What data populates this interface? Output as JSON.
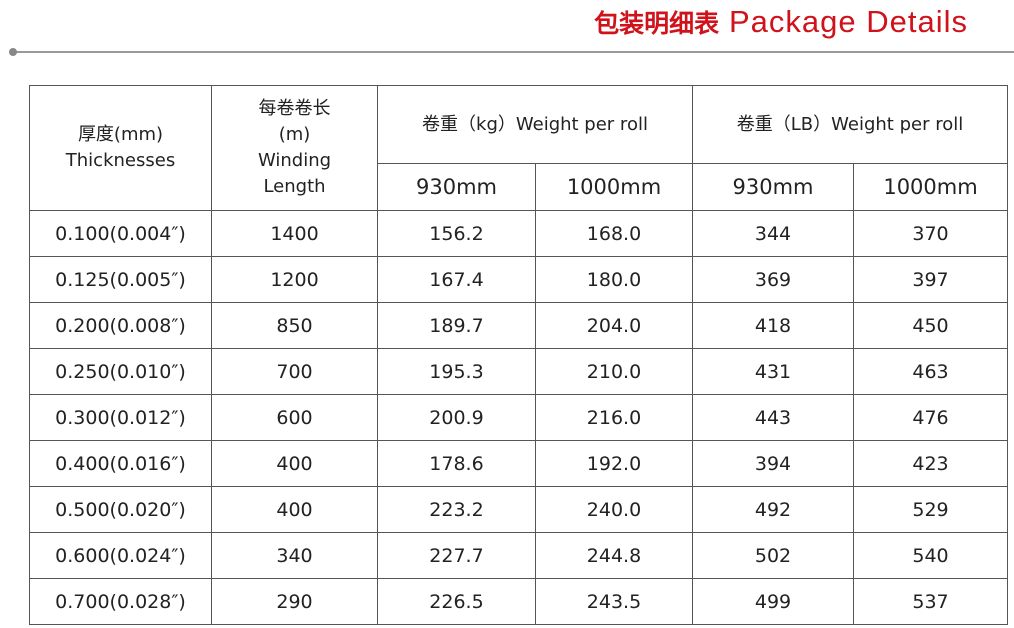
{
  "title": {
    "cn": "包装明细表",
    "en": "Package Details",
    "color": "#d0121b"
  },
  "table": {
    "headers": {
      "thickness_cn": "厚度(mm)",
      "thickness_en": "Thicknesses",
      "length_cn": "每卷卷长",
      "length_unit": "(m)",
      "length_en1": "Winding",
      "length_en2": "Length",
      "weight_kg": "卷重（kg）Weight per roll",
      "weight_lb": "卷重（LB）Weight per roll",
      "sub": [
        "930mm",
        "1000mm",
        "930mm",
        "1000mm"
      ]
    },
    "rows": [
      [
        "0.100(0.004″)",
        "1400",
        "156.2",
        "168.0",
        "344",
        "370"
      ],
      [
        "0.125(0.005″)",
        "1200",
        "167.4",
        "180.0",
        "369",
        "397"
      ],
      [
        "0.200(0.008″)",
        "850",
        "189.7",
        "204.0",
        "418",
        "450"
      ],
      [
        "0.250(0.010″)",
        "700",
        "195.3",
        "210.0",
        "431",
        "463"
      ],
      [
        "0.300(0.012″)",
        "600",
        "200.9",
        "216.0",
        "443",
        "476"
      ],
      [
        "0.400(0.016″)",
        "400",
        "178.6",
        "192.0",
        "394",
        "423"
      ],
      [
        "0.500(0.020″)",
        "400",
        "223.2",
        "240.0",
        "492",
        "529"
      ],
      [
        "0.600(0.024″)",
        "340",
        "227.7",
        "244.8",
        "502",
        "540"
      ],
      [
        "0.700(0.028″)",
        "290",
        "226.5",
        "243.5",
        "499",
        "537"
      ]
    ]
  }
}
